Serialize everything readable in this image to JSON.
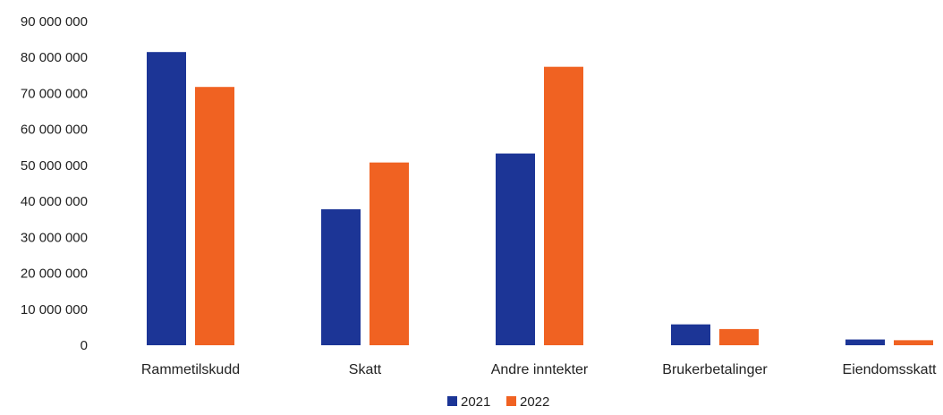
{
  "chart_data": {
    "type": "bar",
    "categories": [
      "Rammetilskudd",
      "Skatt",
      "Andre inntekter",
      "Brukerbetalinger",
      "Eiendomsskatt"
    ],
    "series": [
      {
        "name": "2021",
        "color": "#1c3596",
        "values": [
          81500000,
          37800000,
          53300000,
          5800000,
          1600000
        ]
      },
      {
        "name": "2022",
        "color": "#f06222",
        "values": [
          71800000,
          50800000,
          77400000,
          4500000,
          1400000
        ]
      }
    ],
    "ylim": [
      0,
      90000000
    ],
    "yticks": [
      0,
      10000000,
      20000000,
      30000000,
      40000000,
      50000000,
      60000000,
      70000000,
      80000000,
      90000000
    ],
    "ytick_labels": [
      "0",
      "10 000 000",
      "20 000 000",
      "30 000 000",
      "40 000 000",
      "50 000 000",
      "60 000 000",
      "70 000 000",
      "80 000 000",
      "90 000 000"
    ],
    "grid": false,
    "legend": "bottom",
    "title": "",
    "xlabel": "",
    "ylabel": ""
  }
}
